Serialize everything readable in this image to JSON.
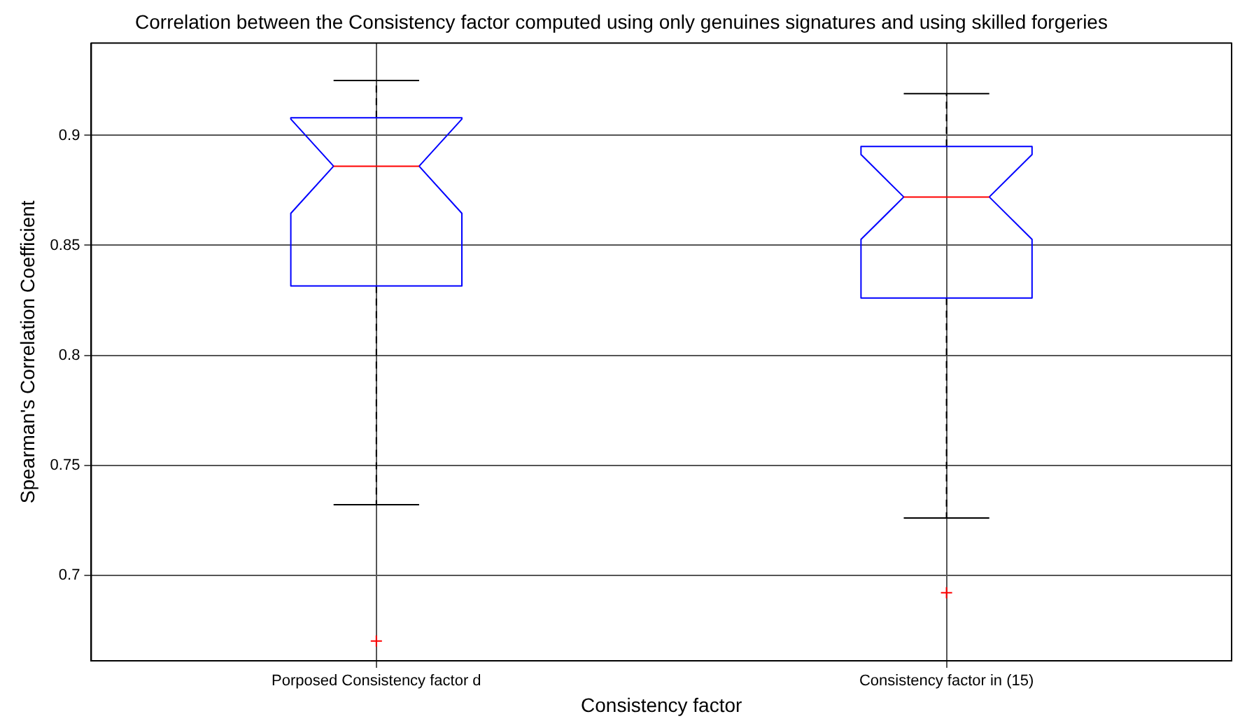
{
  "chart_data": {
    "type": "box",
    "title": "Correlation between the Consistency factor computed using only genuines signatures and using skilled forgeries",
    "xlabel": "Consistency factor",
    "ylabel": "Spearman's Correlation Coefficient",
    "categories": [
      "Porposed Consistency factor d",
      "Consistency factor in (15)"
    ],
    "color": "#0000ff",
    "boxes": [
      {
        "low": 0.732,
        "q1": 0.8315,
        "median": 0.886,
        "q3": 0.908,
        "high": 0.925,
        "outliers": [
          0.67
        ]
      },
      {
        "low": 0.726,
        "q1": 0.826,
        "median": 0.872,
        "q3": 0.895,
        "high": 0.919,
        "outliers": [
          0.692
        ]
      }
    ],
    "ylim": [
      0.661,
      0.942
    ],
    "yticks": [
      0.7,
      0.75,
      0.8,
      0.85,
      0.9
    ],
    "grid": true
  }
}
